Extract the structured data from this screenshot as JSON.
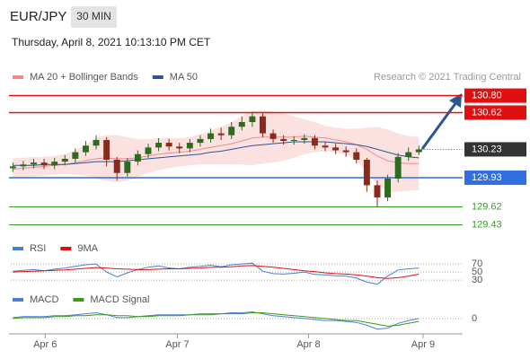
{
  "header": {
    "symbol": "EUR/JPY",
    "timeframe": "30 MIN",
    "datetime": "Thursday, April 8, 2021 10:13:10 PM CET"
  },
  "chart_data": [
    {
      "type": "candlestick",
      "source": "Research © 2021 Trading Central",
      "up_color": "#2f6b1f",
      "down_color": "#8b2a1a",
      "xlim": [
        -0.2,
        43.2
      ],
      "xticks": [
        {
          "value": 3.1,
          "label": "Apr 6"
        },
        {
          "value": 15.8,
          "label": "Apr 7"
        },
        {
          "value": 28.4,
          "label": "Apr 8"
        },
        {
          "value": 39.4,
          "label": "Apr 9"
        }
      ],
      "ylim": [
        129.33,
        130.91
      ],
      "open": [
        130.03,
        130.05,
        130.07,
        130.09,
        130.06,
        130.1,
        130.13,
        130.2,
        130.27,
        130.33,
        130.12,
        129.98,
        130.1,
        130.18,
        130.25,
        130.3,
        130.26,
        130.24,
        130.3,
        130.34,
        130.4,
        130.38,
        130.47,
        130.52,
        130.58,
        130.4,
        130.34,
        130.32,
        130.33,
        130.35,
        130.27,
        130.25,
        130.22,
        130.2,
        130.12,
        129.85,
        129.72,
        129.92,
        130.15,
        130.2
      ],
      "high": [
        130.09,
        130.11,
        130.13,
        130.13,
        130.14,
        130.17,
        130.24,
        130.32,
        130.38,
        130.36,
        130.15,
        130.14,
        130.22,
        130.29,
        130.35,
        130.34,
        130.3,
        130.34,
        130.38,
        130.45,
        130.46,
        130.52,
        130.58,
        130.63,
        130.61,
        130.44,
        130.38,
        130.37,
        130.39,
        130.38,
        130.31,
        130.29,
        130.26,
        130.24,
        130.14,
        129.9,
        129.96,
        130.19,
        130.25,
        130.27
      ],
      "low": [
        129.99,
        130.01,
        130.03,
        130.02,
        130.02,
        130.06,
        130.09,
        130.16,
        130.23,
        130.05,
        129.9,
        129.94,
        130.06,
        130.14,
        130.21,
        130.22,
        130.19,
        130.2,
        130.26,
        130.3,
        130.33,
        130.34,
        130.43,
        130.47,
        130.36,
        130.3,
        130.28,
        130.28,
        130.29,
        130.23,
        130.21,
        130.18,
        130.15,
        130.08,
        129.78,
        129.62,
        129.68,
        129.88,
        130.11,
        130.17
      ],
      "close": [
        130.05,
        130.07,
        130.09,
        130.06,
        130.1,
        130.13,
        130.2,
        130.27,
        130.33,
        130.12,
        129.98,
        130.1,
        130.18,
        130.25,
        130.3,
        130.26,
        130.24,
        130.3,
        130.34,
        130.4,
        130.38,
        130.47,
        130.52,
        130.58,
        130.4,
        130.34,
        130.32,
        130.33,
        130.35,
        130.27,
        130.25,
        130.22,
        130.2,
        130.12,
        129.85,
        129.72,
        129.92,
        130.15,
        130.2,
        130.23
      ],
      "series": [
        {
          "name": "MA 20 + Bollinger Bands",
          "color": "#f08a8a",
          "band_color": "#fbd9d9",
          "values": [
            130.02,
            130.03,
            130.04,
            130.05,
            130.06,
            130.07,
            130.09,
            130.11,
            130.13,
            130.14,
            130.13,
            130.13,
            130.14,
            130.16,
            130.18,
            130.19,
            130.2,
            130.21,
            130.23,
            130.25,
            130.27,
            130.29,
            130.32,
            130.35,
            130.36,
            130.36,
            130.36,
            130.36,
            130.37,
            130.36,
            130.35,
            130.33,
            130.31,
            130.28,
            130.23,
            130.16,
            130.11,
            130.09,
            130.08,
            130.08
          ],
          "upper": [
            130.14,
            130.14,
            130.15,
            130.15,
            130.16,
            130.18,
            130.22,
            130.28,
            130.36,
            130.38,
            130.38,
            130.36,
            130.34,
            130.34,
            130.35,
            130.35,
            130.35,
            130.36,
            130.39,
            130.43,
            130.47,
            130.52,
            130.58,
            130.64,
            130.64,
            130.63,
            130.61,
            130.58,
            130.55,
            130.52,
            130.48,
            130.46,
            130.45,
            130.45,
            130.46,
            130.47,
            130.44,
            130.4,
            130.37,
            130.36
          ],
          "lower": [
            129.92,
            129.93,
            129.94,
            129.95,
            129.96,
            129.97,
            129.96,
            129.95,
            129.92,
            129.9,
            129.88,
            129.9,
            129.94,
            129.98,
            130.01,
            130.03,
            130.05,
            130.06,
            130.07,
            130.07,
            130.07,
            130.07,
            130.07,
            130.06,
            130.08,
            130.09,
            130.11,
            130.14,
            130.18,
            130.2,
            130.21,
            130.2,
            130.17,
            130.11,
            130.0,
            129.85,
            129.78,
            129.78,
            129.79,
            129.8
          ]
        },
        {
          "name": "MA 50",
          "color": "#2d5592",
          "values": [
            130.06,
            130.06,
            130.06,
            130.07,
            130.07,
            130.07,
            130.08,
            130.09,
            130.1,
            130.1,
            130.1,
            130.11,
            130.12,
            130.13,
            130.14,
            130.15,
            130.16,
            130.17,
            130.18,
            130.2,
            130.21,
            130.23,
            130.25,
            130.27,
            130.28,
            130.29,
            130.3,
            130.31,
            130.31,
            130.31,
            130.31,
            130.3,
            130.29,
            130.28,
            130.26,
            130.23,
            130.2,
            130.17,
            130.15,
            130.14
          ]
        }
      ],
      "levels": [
        {
          "value": 130.8,
          "label": "130.80",
          "color": "#e01010",
          "box": true
        },
        {
          "value": 130.62,
          "color": "#e01010",
          "box": true
        },
        {
          "value": 130.23,
          "color": "#333333",
          "box": true,
          "current": true
        },
        {
          "value": 129.93,
          "color": "#2f6fe0",
          "box": true
        },
        {
          "value": 129.62,
          "color": "#3b9a2a",
          "box": false
        },
        {
          "value": 129.43,
          "color": "#3b9a2a",
          "box": false
        }
      ]
    },
    {
      "type": "line",
      "ylim": [
        17,
        79
      ],
      "yticks": [
        70,
        50,
        30
      ],
      "series": [
        {
          "name": "RSI",
          "color": "#4a7fd4",
          "values": [
            52,
            54,
            56,
            53,
            57,
            60,
            64,
            68,
            70,
            50,
            38,
            48,
            56,
            62,
            65,
            60,
            58,
            62,
            64,
            67,
            63,
            68,
            70,
            72,
            52,
            46,
            45,
            47,
            50,
            44,
            43,
            41,
            40,
            35,
            25,
            20,
            40,
            55,
            58,
            60
          ]
        },
        {
          "name": "9MA",
          "color": "#e01010",
          "values": [
            50,
            51,
            52,
            53,
            54,
            55,
            57,
            59,
            61,
            60,
            58,
            57,
            56,
            56,
            57,
            58,
            58,
            59,
            60,
            62,
            62,
            63,
            65,
            66,
            64,
            62,
            59,
            56,
            53,
            51,
            48,
            46,
            45,
            43,
            40,
            36,
            34,
            36,
            40,
            45
          ]
        }
      ]
    },
    {
      "type": "line",
      "ylim": [
        -0.16,
        0.14
      ],
      "yticks": [
        0
      ],
      "series": [
        {
          "name": "MACD",
          "color": "#4a7fd4",
          "values": [
            0.01,
            0.02,
            0.02,
            0.02,
            0.03,
            0.03,
            0.04,
            0.05,
            0.06,
            0.04,
            0.01,
            0.01,
            0.02,
            0.03,
            0.04,
            0.04,
            0.04,
            0.04,
            0.05,
            0.05,
            0.05,
            0.06,
            0.06,
            0.07,
            0.05,
            0.03,
            0.02,
            0.01,
            0.0,
            -0.01,
            -0.02,
            -0.02,
            -0.03,
            -0.04,
            -0.07,
            -0.11,
            -0.1,
            -0.05,
            -0.02,
            0.0
          ]
        },
        {
          "name": "MACD Signal",
          "color": "#3a9a1a",
          "values": [
            0.0,
            0.01,
            0.01,
            0.01,
            0.02,
            0.02,
            0.03,
            0.03,
            0.04,
            0.04,
            0.03,
            0.03,
            0.02,
            0.02,
            0.03,
            0.03,
            0.03,
            0.04,
            0.04,
            0.04,
            0.05,
            0.05,
            0.05,
            0.06,
            0.06,
            0.05,
            0.04,
            0.03,
            0.02,
            0.01,
            0.0,
            -0.01,
            -0.02,
            -0.02,
            -0.04,
            -0.06,
            -0.08,
            -0.07,
            -0.05,
            -0.03
          ]
        }
      ]
    }
  ]
}
